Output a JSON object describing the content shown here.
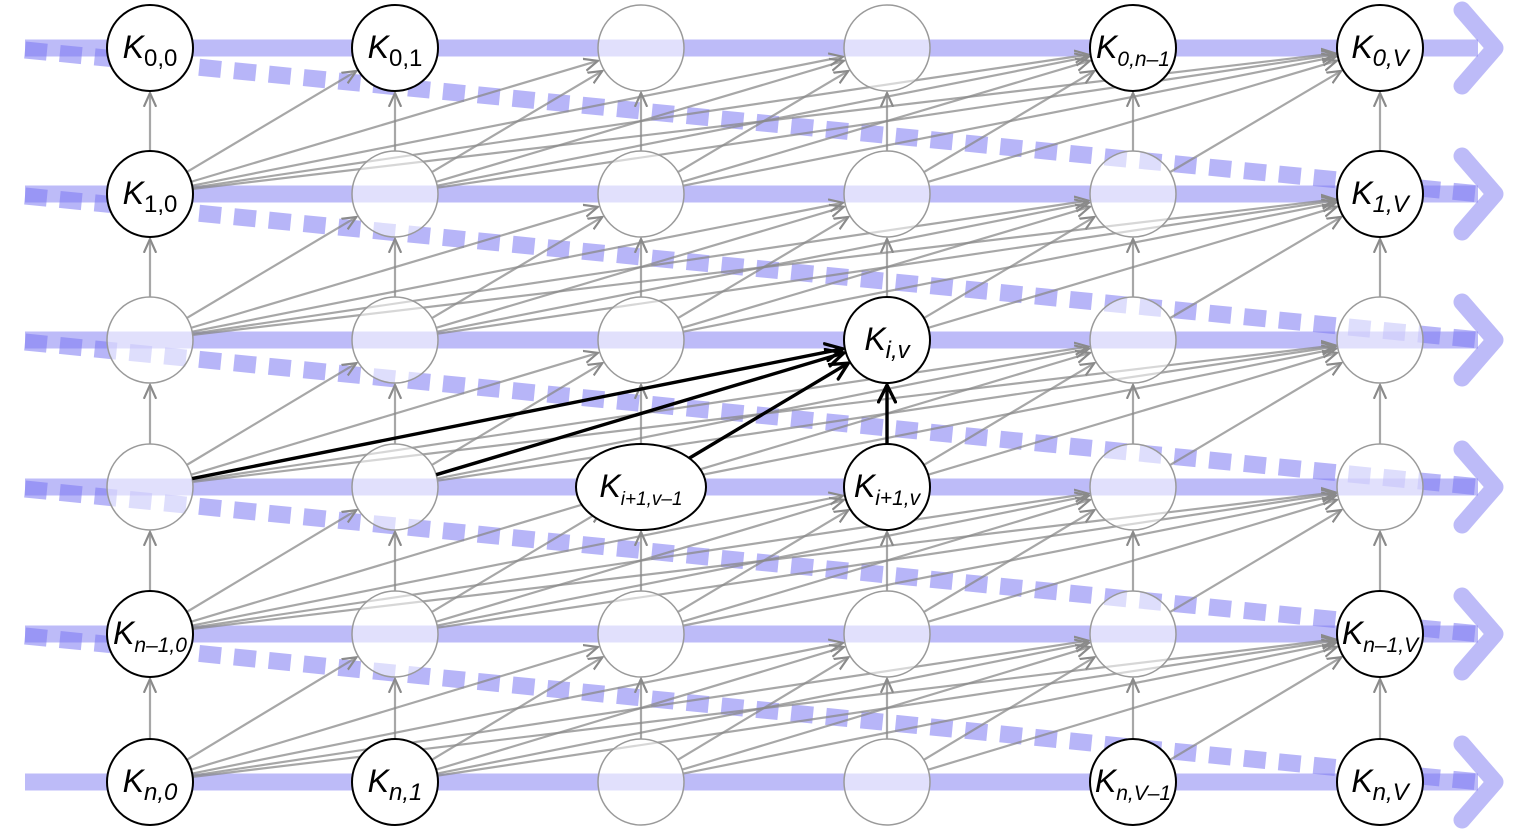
{
  "diagram": {
    "columns": 6,
    "rows": 6,
    "highlight_node": "K_{i,v}",
    "colors": {
      "band": "#7b78f2",
      "edge_faint": "#8a8a8a",
      "edge_strong": "#000000",
      "node_faint": "#9a9a9a",
      "node_strong": "#000000"
    },
    "labeled_nodes": [
      {
        "key": "n00",
        "base": "K",
        "sub": "0,0",
        "italic_sub": false
      },
      {
        "key": "n01",
        "base": "K",
        "sub": "0,1",
        "italic_sub": false
      },
      {
        "key": "n0n1",
        "base": "K",
        "sub": "0,n–1",
        "italic_sub": true
      },
      {
        "key": "n0V",
        "base": "K",
        "sub": "0,V",
        "italic_sub": true
      },
      {
        "key": "n10",
        "base": "K",
        "sub": "1,0",
        "italic_sub": false
      },
      {
        "key": "n1V",
        "base": "K",
        "sub": "1,V",
        "italic_sub": true
      },
      {
        "key": "niv",
        "base": "K",
        "sub": "i,v",
        "italic_sub": true
      },
      {
        "key": "ni1v1",
        "base": "K",
        "sub": "i+1,v–1",
        "italic_sub": true
      },
      {
        "key": "ni1v",
        "base": "K",
        "sub": "i+1,v",
        "italic_sub": true
      },
      {
        "key": "nn10",
        "base": "K",
        "sub": "n–1,0",
        "italic_sub": true
      },
      {
        "key": "nn1V",
        "base": "K",
        "sub": "n–1,V",
        "italic_sub": true
      },
      {
        "key": "nn0",
        "base": "K",
        "sub": "n,0",
        "italic_sub": true
      },
      {
        "key": "nn1",
        "base": "K",
        "sub": "n,1",
        "italic_sub": true
      },
      {
        "key": "nnV1",
        "base": "K",
        "sub": "n,V–1",
        "italic_sub": true
      },
      {
        "key": "nnV",
        "base": "K",
        "sub": "n,V",
        "italic_sub": true
      }
    ]
  }
}
